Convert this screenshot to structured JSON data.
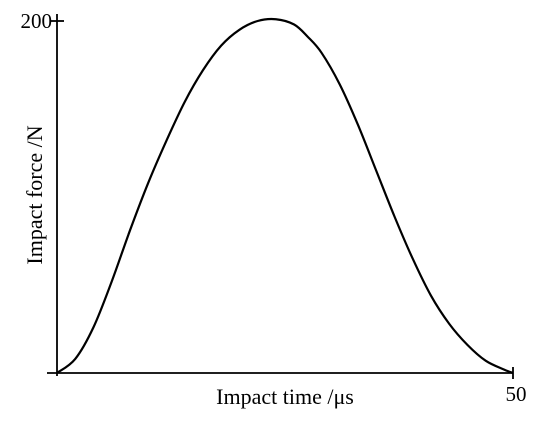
{
  "chart_data": {
    "type": "line",
    "title": "",
    "xlabel": "Impact time /μs",
    "ylabel": "Impact force /N",
    "xlim": [
      0,
      50
    ],
    "ylim": [
      0,
      200
    ],
    "x_tick_labels": [
      {
        "value": 50,
        "label": "50"
      }
    ],
    "y_tick_labels": [
      {
        "value": 200,
        "label": "200"
      }
    ],
    "grid": false,
    "legend": "none",
    "colors": {
      "line": "#000000",
      "axis": "#000000",
      "background": "#ffffff"
    },
    "series": [
      {
        "x": [
          0,
          2,
          4,
          6,
          8,
          10,
          12,
          14,
          16,
          18,
          20,
          22,
          24,
          26,
          27.5,
          29,
          31,
          33,
          35,
          37,
          39,
          41,
          43,
          45,
          47,
          49,
          50
        ],
        "y": [
          0,
          8,
          26,
          52,
          81,
          108,
          132,
          154,
          172,
          186,
          195,
          200,
          201,
          198,
          191,
          182,
          164,
          141,
          115,
          89,
          65,
          44,
          28,
          16,
          7,
          2,
          0
        ]
      }
    ]
  }
}
